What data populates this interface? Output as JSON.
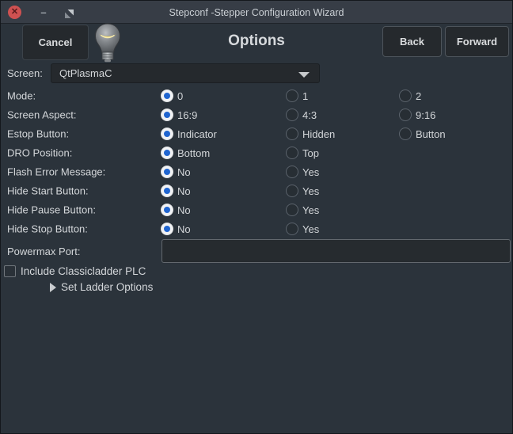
{
  "window": {
    "title": "Stepconf -Stepper Configuration Wizard",
    "controls": {
      "close_icon": "close-icon",
      "minimize_icon": "minimize-icon",
      "maximize_icon": "maximize-icon"
    }
  },
  "header": {
    "cancel_label": "Cancel",
    "title": "Options",
    "back_label": "Back",
    "forward_label": "Forward",
    "bulb_icon": "lightbulb-icon"
  },
  "screen": {
    "label": "Screen:",
    "value": "QtPlasmaC"
  },
  "radio_rows": [
    {
      "label": "Mode:",
      "options": [
        {
          "label": "0",
          "selected": true
        },
        {
          "label": "1",
          "selected": false
        },
        {
          "label": "2",
          "selected": false
        }
      ]
    },
    {
      "label": "Screen Aspect:",
      "options": [
        {
          "label": "16:9",
          "selected": true
        },
        {
          "label": "4:3",
          "selected": false
        },
        {
          "label": "9:16",
          "selected": false
        }
      ]
    },
    {
      "label": "Estop Button:",
      "options": [
        {
          "label": "Indicator",
          "selected": true
        },
        {
          "label": "Hidden",
          "selected": false
        },
        {
          "label": "Button",
          "selected": false
        }
      ]
    },
    {
      "label": "DRO Position:",
      "options": [
        {
          "label": "Bottom",
          "selected": true
        },
        {
          "label": "Top",
          "selected": false
        }
      ]
    },
    {
      "label": "Flash Error Message:",
      "options": [
        {
          "label": "No",
          "selected": true
        },
        {
          "label": "Yes",
          "selected": false
        }
      ]
    },
    {
      "label": "Hide Start Button:",
      "options": [
        {
          "label": "No",
          "selected": true
        },
        {
          "label": "Yes",
          "selected": false
        }
      ]
    },
    {
      "label": "Hide Pause Button:",
      "options": [
        {
          "label": "No",
          "selected": true
        },
        {
          "label": "Yes",
          "selected": false
        }
      ]
    },
    {
      "label": "Hide Stop Button:",
      "options": [
        {
          "label": "No",
          "selected": true
        },
        {
          "label": "Yes",
          "selected": false
        }
      ]
    }
  ],
  "powermax": {
    "label": "Powermax Port:",
    "value": ""
  },
  "classicladder": {
    "label": "Include Classicladder PLC",
    "checked": false
  },
  "ladder": {
    "label": "Set Ladder Options"
  },
  "colors": {
    "titlebar_bg": "#373d46",
    "content_bg": "#2b333b",
    "button_bg": "#25292d",
    "accent_blue": "#2065d0",
    "close_red": "#cf5151",
    "text": "#d3d6d9"
  }
}
